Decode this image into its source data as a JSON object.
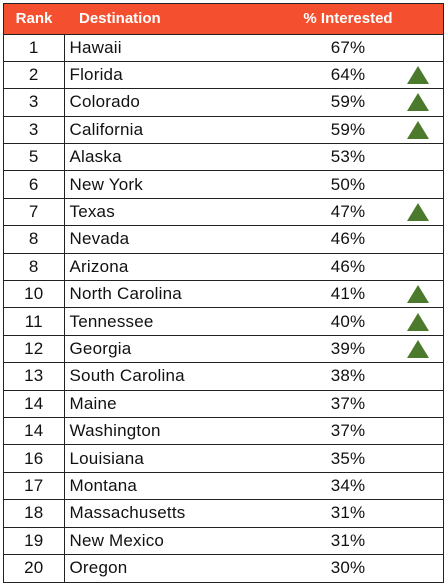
{
  "headers": {
    "rank": "Rank",
    "destination": "Destination",
    "pct": "% Interested"
  },
  "colors": {
    "header_bg": "#f4502f",
    "up_arrow": "#4c7a2c"
  },
  "rows": [
    {
      "rank": "1",
      "destination": "Hawaii",
      "pct": "67%",
      "up": false
    },
    {
      "rank": "2",
      "destination": "Florida",
      "pct": "64%",
      "up": true
    },
    {
      "rank": "3",
      "destination": "Colorado",
      "pct": "59%",
      "up": true
    },
    {
      "rank": "3",
      "destination": "California",
      "pct": "59%",
      "up": true
    },
    {
      "rank": "5",
      "destination": "Alaska",
      "pct": "53%",
      "up": false
    },
    {
      "rank": "6",
      "destination": "New York",
      "pct": "50%",
      "up": false
    },
    {
      "rank": "7",
      "destination": "Texas",
      "pct": "47%",
      "up": true
    },
    {
      "rank": "8",
      "destination": "Nevada",
      "pct": "46%",
      "up": false
    },
    {
      "rank": "8",
      "destination": "Arizona",
      "pct": "46%",
      "up": false
    },
    {
      "rank": "10",
      "destination": "North Carolina",
      "pct": "41%",
      "up": true
    },
    {
      "rank": "11",
      "destination": "Tennessee",
      "pct": "40%",
      "up": true
    },
    {
      "rank": "12",
      "destination": "Georgia",
      "pct": "39%",
      "up": true
    },
    {
      "rank": "13",
      "destination": "South Carolina",
      "pct": "38%",
      "up": false
    },
    {
      "rank": "14",
      "destination": "Maine",
      "pct": "37%",
      "up": false
    },
    {
      "rank": "14",
      "destination": "Washington",
      "pct": "37%",
      "up": false
    },
    {
      "rank": "16",
      "destination": "Louisiana",
      "pct": "35%",
      "up": false
    },
    {
      "rank": "17",
      "destination": "Montana",
      "pct": "34%",
      "up": false
    },
    {
      "rank": "18",
      "destination": "Massachusetts",
      "pct": "31%",
      "up": false
    },
    {
      "rank": "19",
      "destination": "New Mexico",
      "pct": "31%",
      "up": false
    },
    {
      "rank": "20",
      "destination": "Oregon",
      "pct": "30%",
      "up": false
    }
  ]
}
